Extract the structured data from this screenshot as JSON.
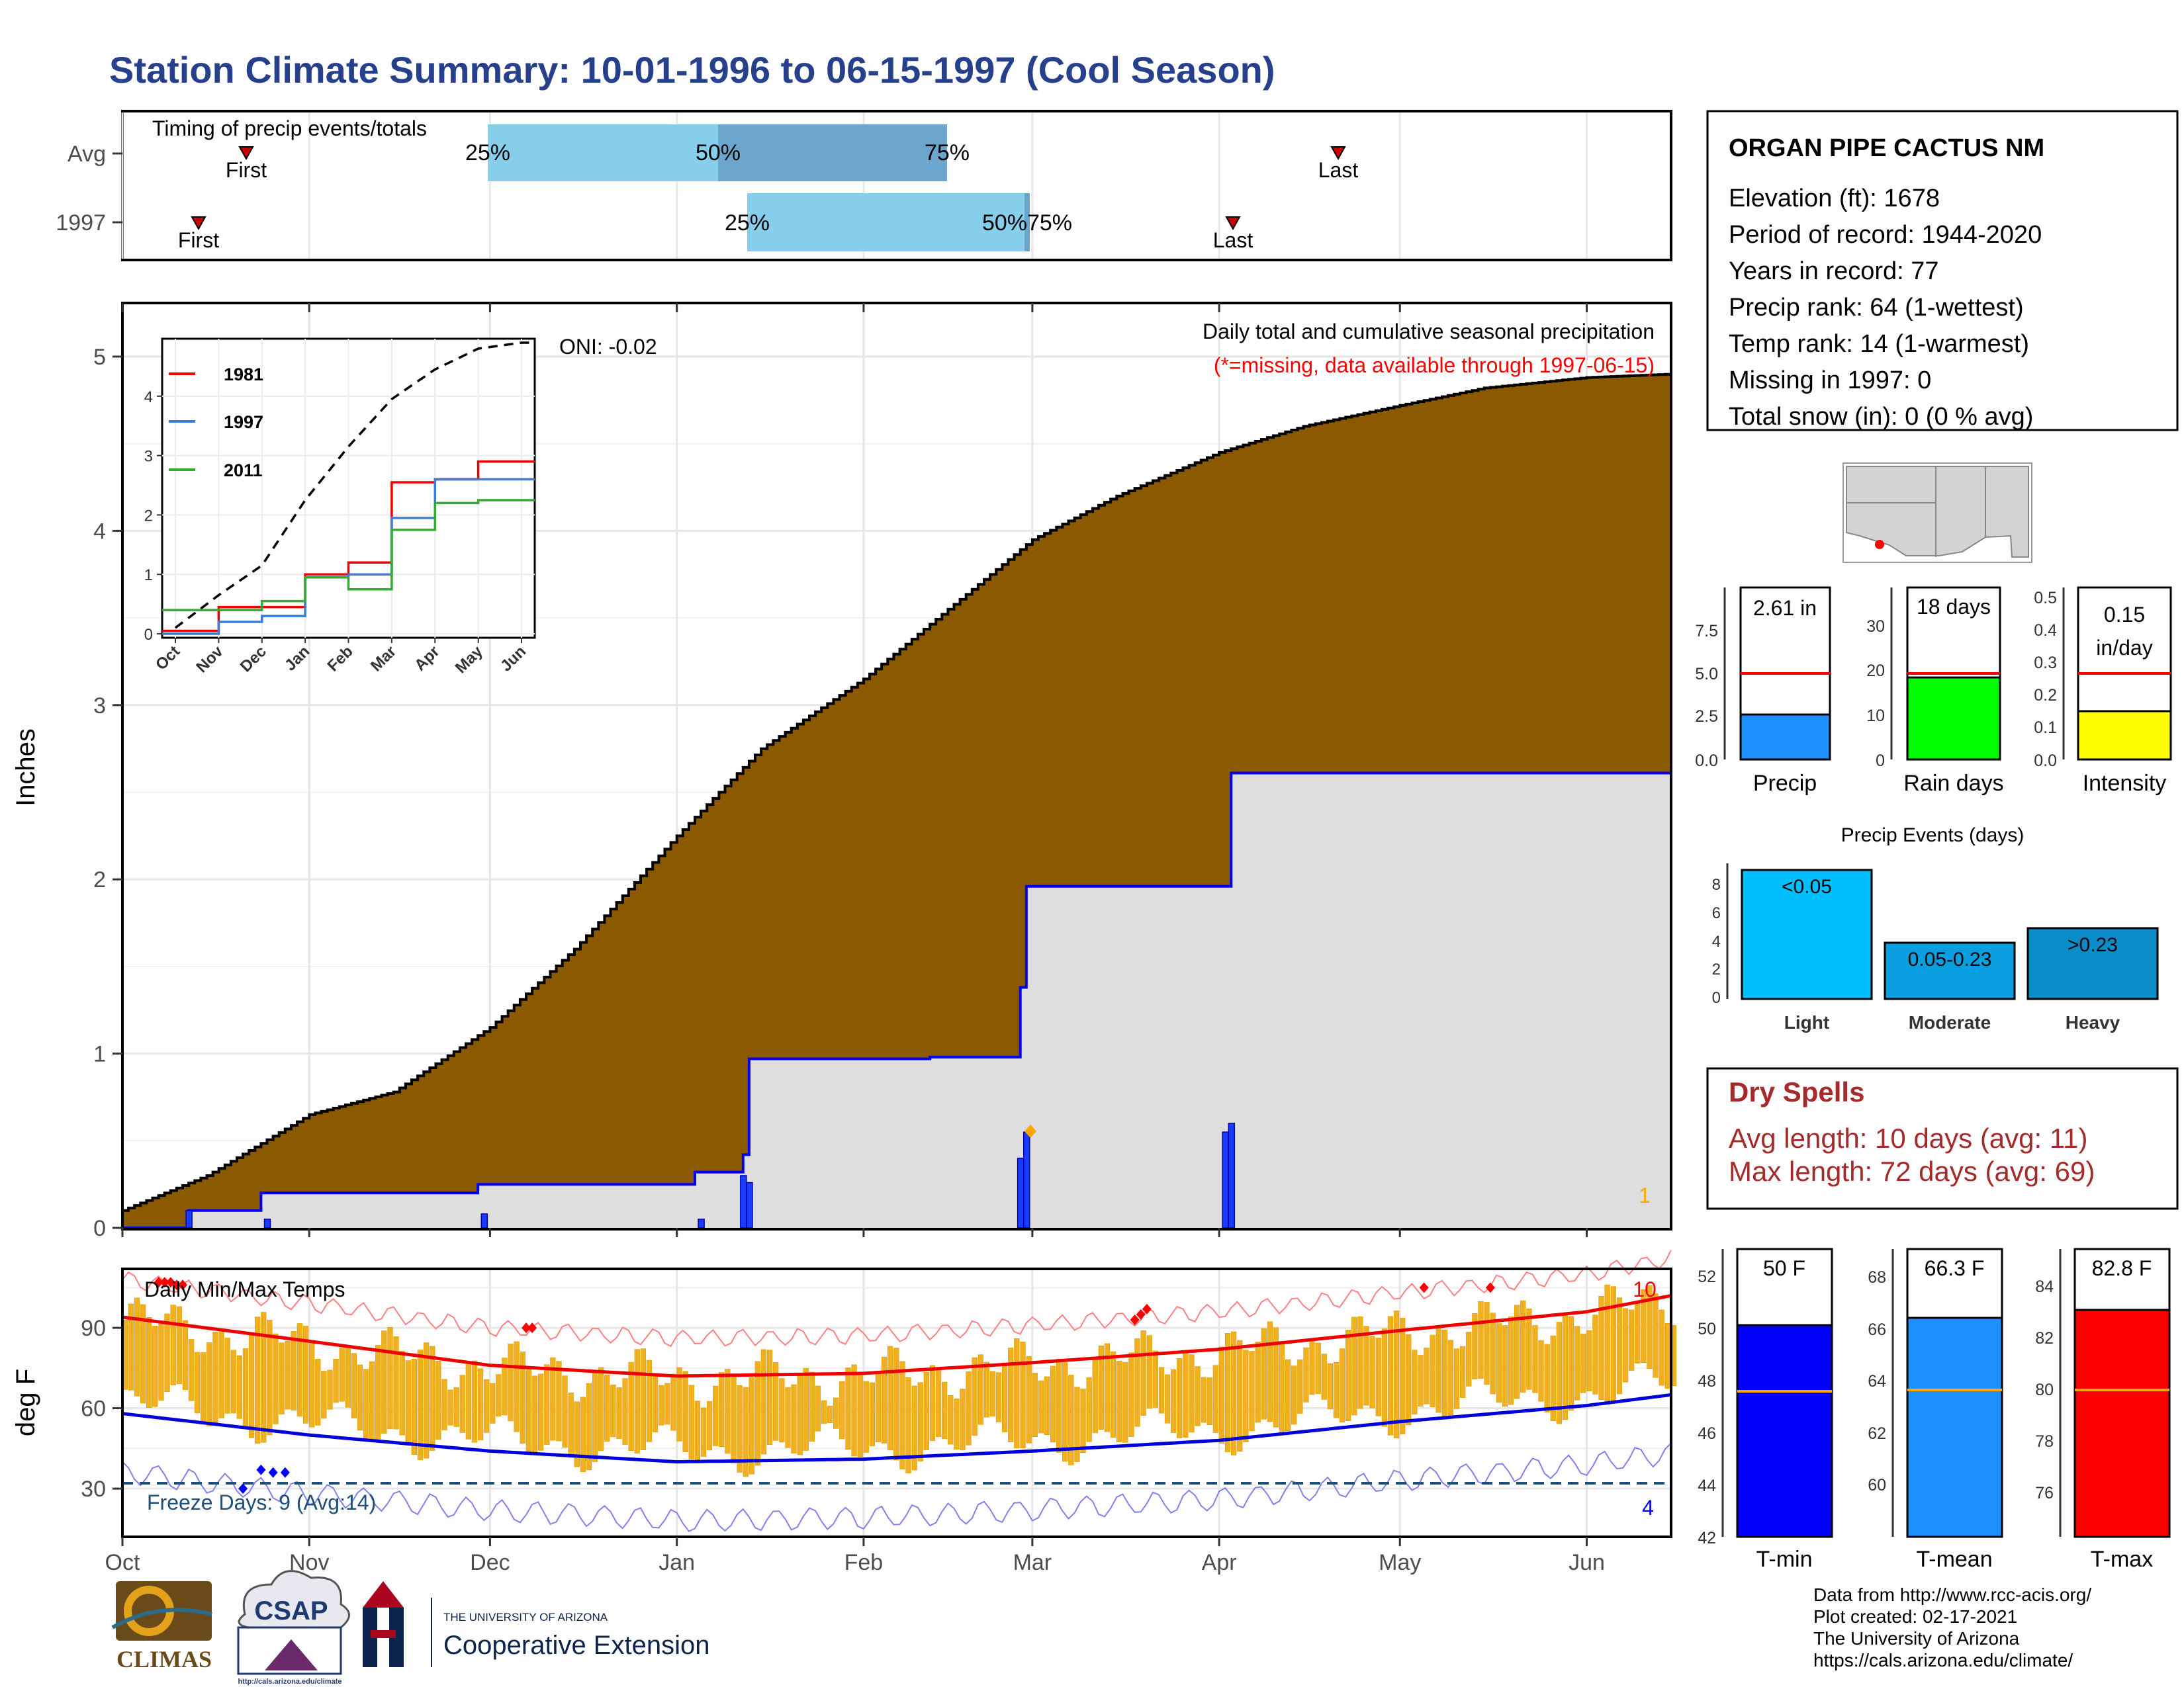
{
  "title": "Station Climate Summary: 10-01-1996 to 06-15-1997 (Cool Season)",
  "colors": {
    "title": "#27408b",
    "brown": "#8b5a00",
    "grey_fill": "#dedede",
    "blue_line": "#0000ee",
    "orange_bar": "#f0b020",
    "red": "#ff0000",
    "light_blue": "#87ceeb",
    "mid_blue": "#6ca6cd",
    "dry_red": "#a52a2a"
  },
  "timing_panel": {
    "label": "Timing of precip events/totals",
    "row_labels": [
      "Avg",
      "1997"
    ],
    "pct_labels": [
      "25%",
      "50%",
      "75%"
    ],
    "first_label": "First",
    "last_label": "Last",
    "row_1997_overlap_label": "50%75%"
  },
  "main_panel": {
    "ylabel": "Inches",
    "yticks": [
      "0",
      "1",
      "2",
      "3",
      "4",
      "5"
    ],
    "oni": "ONI: -0.02",
    "caption": "Daily total and cumulative seasonal precipitation",
    "missing_note": "(*=missing, data available through 1997-06-15)",
    "count_label": "1"
  },
  "inset": {
    "yticks": [
      "0",
      "1",
      "2",
      "3",
      "4"
    ],
    "xticks": [
      "Oct",
      "Nov",
      "Dec",
      "Jan",
      "Feb",
      "Mar",
      "Apr",
      "May",
      "Jun"
    ],
    "legend": [
      "1981",
      "1997",
      "2011"
    ]
  },
  "temp_panel": {
    "label": "Daily Min/Max Temps",
    "ylabel": "deg F",
    "yticks": [
      "30",
      "60",
      "90"
    ],
    "freeze": "Freeze Days: 9 (Avg:14)",
    "count_top": "10",
    "count_bottom": "4",
    "xticks": [
      "Oct",
      "Nov",
      "Dec",
      "Jan",
      "Feb",
      "Mar",
      "Apr",
      "May",
      "Jun"
    ]
  },
  "station": {
    "name": "ORGAN PIPE CACTUS NM",
    "lines": [
      "Elevation (ft): 1678",
      "Period of record: 1944-2020",
      "Years in record: 77",
      "Precip rank: 64 (1-wettest)",
      "Temp rank: 14 (1-warmest)",
      "Missing in 1997: 0",
      "Total snow (in): 0 (0 % avg)"
    ]
  },
  "mini_bars": {
    "precip": {
      "label": "Precip",
      "value_text": "2.61 in",
      "yticks": [
        "0.0",
        "2.5",
        "5.0",
        "7.5"
      ]
    },
    "raindays": {
      "label": "Rain days",
      "value_text": "18 days",
      "yticks": [
        "0",
        "10",
        "20",
        "30"
      ]
    },
    "intensity": {
      "label": "Intensity",
      "value_text_1": "0.15",
      "value_text_2": "in/day",
      "yticks": [
        "0.0",
        "0.1",
        "0.2",
        "0.3",
        "0.4",
        "0.5"
      ]
    }
  },
  "events": {
    "title": "Precip Events (days)",
    "yticks": [
      "0",
      "2",
      "4",
      "6",
      "8"
    ],
    "bars": [
      {
        "label": "Light",
        "text": "<0.05"
      },
      {
        "label": "Moderate",
        "text": "0.05-0.23"
      },
      {
        "label": "Heavy",
        "text": ">0.23"
      }
    ]
  },
  "dry_spells": {
    "title": "Dry Spells",
    "avg": "Avg length: 10 days (avg: 11)",
    "max": "Max length: 72 days (avg: 69)"
  },
  "temp_bars": {
    "tmin": {
      "label": "T-min",
      "value_text": "50 F",
      "yticks": [
        "42",
        "44",
        "46",
        "48",
        "50",
        "52"
      ]
    },
    "tmean": {
      "label": "T-mean",
      "value_text": "66.3 F",
      "yticks": [
        "60",
        "62",
        "64",
        "66",
        "68"
      ]
    },
    "tmax": {
      "label": "T-max",
      "value_text": "82.8 F",
      "yticks": [
        "76",
        "78",
        "80",
        "82",
        "84"
      ]
    }
  },
  "footer": {
    "lines": [
      "Data from http://www.rcc-acis.org/",
      "Plot created: 02-17-2021",
      "The University of Arizona",
      "https://cals.arizona.edu/climate/"
    ],
    "logos": {
      "climas": "CLIMAS",
      "csap": "CSAP",
      "csap_url": "http://cals.arizona.edu/climate",
      "ua_small": "THE UNIVERSITY OF ARIZONA",
      "ua_big": "Cooperative Extension"
    }
  },
  "chart_data": [
    {
      "type": "area",
      "name": "cumulative_avg",
      "x": [
        "1996-10-01",
        "1996-10-15",
        "1996-11-01",
        "1996-11-15",
        "1996-12-01",
        "1996-12-15",
        "1997-01-01",
        "1997-01-15",
        "1997-02-01",
        "1997-02-15",
        "1997-03-01",
        "1997-03-15",
        "1997-04-01",
        "1997-04-15",
        "1997-05-01",
        "1997-05-15",
        "1997-06-01",
        "1997-06-15"
      ],
      "y": [
        0.1,
        0.3,
        0.65,
        0.78,
        1.15,
        1.6,
        2.25,
        2.75,
        3.15,
        3.55,
        3.95,
        4.2,
        4.45,
        4.6,
        4.72,
        4.82,
        4.88,
        4.9
      ],
      "ylim": [
        0,
        5.3
      ]
    },
    {
      "type": "line",
      "name": "cumulative_1997",
      "x": [
        "1996-10-01",
        "1996-10-12",
        "1996-10-24",
        "1996-11-29",
        "1997-01-04",
        "1997-01-12",
        "1997-01-13",
        "1997-02-12",
        "1997-02-27",
        "1997-02-28",
        "1997-04-02",
        "1997-04-03",
        "1997-06-15"
      ],
      "y": [
        0,
        0.1,
        0.2,
        0.25,
        0.32,
        0.42,
        0.97,
        0.98,
        1.38,
        1.96,
        1.96,
        2.61,
        2.61
      ]
    },
    {
      "type": "bar",
      "name": "daily_1997",
      "x": [
        "1996-10-12",
        "1996-10-25",
        "1996-11-30",
        "1997-01-05",
        "1997-01-12",
        "1997-01-13",
        "1997-02-27",
        "1997-02-28",
        "1997-04-02",
        "1997-04-03"
      ],
      "y": [
        0.1,
        0.05,
        0.08,
        0.05,
        0.3,
        0.26,
        0.4,
        0.55,
        0.55,
        0.6
      ]
    },
    {
      "type": "line",
      "name": "inset_cumulative",
      "x": [
        "Oct",
        "Nov",
        "Dec",
        "Jan",
        "Feb",
        "Mar",
        "Apr",
        "May",
        "Jun"
      ],
      "series": [
        {
          "name": "1981",
          "values": [
            0.05,
            0.45,
            0.45,
            1.0,
            1.2,
            2.55,
            2.6,
            2.9,
            2.9
          ]
        },
        {
          "name": "1997",
          "values": [
            0,
            0.2,
            0.3,
            0.95,
            1.0,
            1.95,
            2.6,
            2.6,
            2.6
          ]
        },
        {
          "name": "2011",
          "values": [
            0.4,
            0.4,
            0.55,
            0.95,
            0.75,
            1.75,
            2.2,
            2.25,
            2.25
          ]
        }
      ],
      "avg_dashed": [
        0.1,
        0.65,
        1.15,
        2.25,
        3.15,
        3.95,
        4.45,
        4.8,
        4.9
      ],
      "ylim": [
        0,
        4.9
      ]
    },
    {
      "type": "line",
      "name": "temps",
      "x": [
        "1996-10-01",
        "1996-11-01",
        "1996-12-01",
        "1997-01-01",
        "1997-02-01",
        "1997-03-01",
        "1997-04-01",
        "1997-05-01",
        "1997-06-01",
        "1997-06-15"
      ],
      "avg_max": [
        94,
        85,
        76,
        72,
        73,
        77,
        82,
        89,
        96,
        102
      ],
      "avg_min": [
        58,
        50,
        44,
        40,
        41,
        44,
        48,
        55,
        61,
        65
      ],
      "ylim": [
        12,
        112
      ],
      "freeze_line": 32
    },
    {
      "type": "bar",
      "name": "summary_bars",
      "categories": [
        "Precip",
        "Rain days",
        "Intensity",
        "T-min",
        "T-mean",
        "T-max"
      ],
      "values": [
        2.61,
        18,
        0.15,
        50,
        66.3,
        82.8
      ],
      "averages": [
        5.0,
        19,
        0.26,
        47.4,
        63.6,
        79.7
      ]
    },
    {
      "type": "bar",
      "name": "precip_events",
      "categories": [
        "Light",
        "Moderate",
        "Heavy"
      ],
      "values": [
        9,
        4,
        5
      ],
      "ylim": [
        0,
        9
      ]
    }
  ]
}
